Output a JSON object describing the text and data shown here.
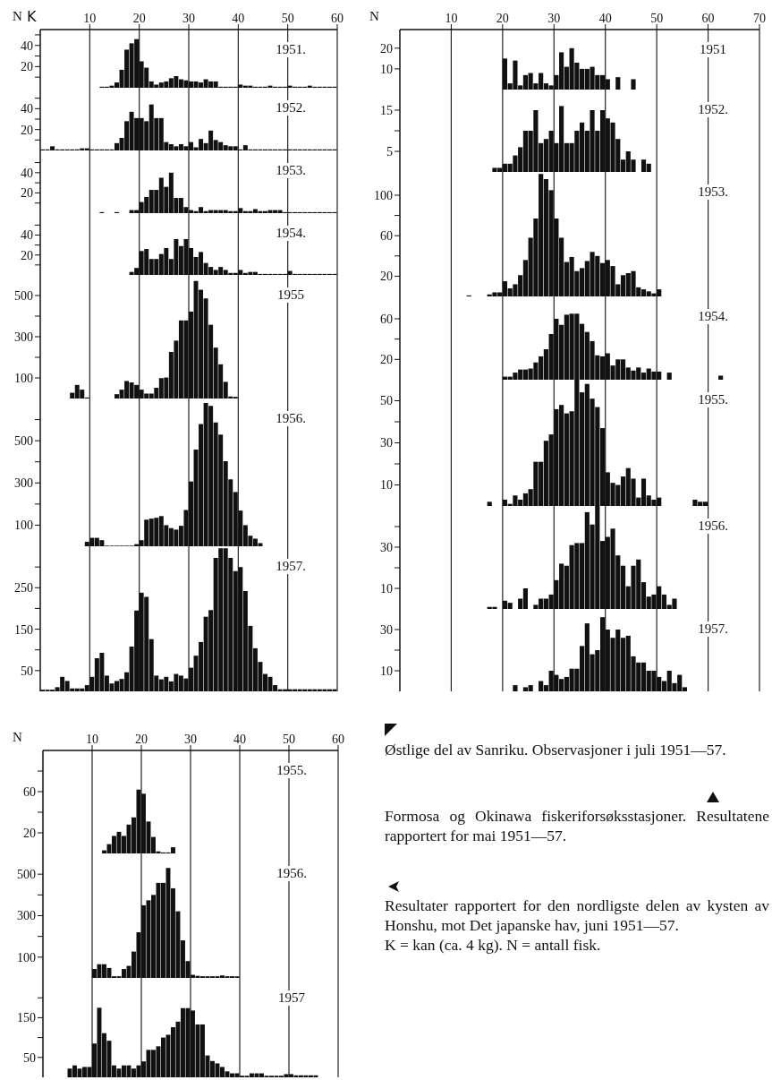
{
  "chart_data": [
    {
      "type": "histogram",
      "title": "1951.",
      "xlabel": "K",
      "ylabel": "N",
      "color": "#111111",
      "grid": "x",
      "xlim": [
        0,
        60
      ],
      "xticks": [
        10,
        20,
        30,
        40,
        50,
        60
      ],
      "ylim": [
        0,
        55
      ],
      "yticks": [
        {
          "value": 10,
          "label": null
        },
        20,
        {
          "value": 30,
          "label": null
        },
        40,
        {
          "value": 50,
          "label": null
        }
      ],
      "bins": [
        12,
        13,
        14,
        15,
        16,
        17,
        18,
        19,
        20,
        21,
        22,
        23,
        24,
        25,
        26,
        27,
        28,
        29,
        30,
        31,
        32,
        33,
        34,
        35,
        36,
        37,
        38,
        39,
        40,
        41,
        42,
        43,
        44,
        45,
        46,
        47,
        48,
        49,
        50,
        51,
        52,
        53,
        54,
        55,
        56,
        57,
        58,
        59,
        60
      ],
      "values": [
        1,
        1,
        2,
        5,
        17,
        36,
        42,
        46,
        25,
        19,
        6,
        3,
        5,
        6,
        9,
        11,
        8,
        7,
        6,
        6,
        5,
        8,
        6,
        6,
        1,
        1,
        1,
        1,
        3,
        2,
        2,
        1,
        1,
        1,
        2,
        1,
        1,
        1,
        2,
        1,
        1,
        1,
        2,
        1,
        1,
        1,
        1,
        1
      ]
    },
    {
      "type": "histogram",
      "title": "1952.",
      "tick_labels": "y",
      "color": "#111111",
      "grid": "x",
      "xlim": [
        0,
        60
      ],
      "xticks": [
        10,
        20,
        30,
        40,
        50,
        60
      ],
      "ylim": [
        0,
        60
      ],
      "yticks": [
        {
          "value": 10,
          "label": null
        },
        20,
        {
          "value": 30,
          "label": null
        },
        40,
        {
          "value": 50,
          "label": null
        }
      ],
      "bins": [
        0,
        1,
        2,
        3,
        4,
        5,
        6,
        7,
        8,
        9,
        10,
        11,
        12,
        13,
        14,
        15,
        16,
        17,
        18,
        19,
        20,
        21,
        22,
        23,
        24,
        25,
        26,
        27,
        28,
        29,
        30,
        31,
        32,
        33,
        34,
        35,
        36,
        37,
        38,
        39,
        40,
        41,
        42,
        43,
        44,
        45,
        46,
        47,
        48,
        49,
        50,
        51,
        52,
        53,
        54,
        55,
        56,
        57,
        58,
        59,
        60
      ],
      "values": [
        1,
        1,
        4,
        1,
        1,
        1,
        1,
        1,
        2,
        2,
        1,
        1,
        1,
        1,
        1,
        7,
        12,
        28,
        37,
        31,
        31,
        28,
        44,
        31,
        31,
        8,
        6,
        4,
        6,
        4,
        8,
        3,
        11,
        7,
        19,
        10,
        8,
        5,
        4,
        4,
        1,
        5,
        1,
        1,
        1,
        1,
        1,
        1,
        1,
        1,
        1,
        1,
        1,
        1,
        1,
        1,
        1,
        1,
        1,
        1
      ]
    },
    {
      "type": "histogram",
      "title": "1953.",
      "tick_labels": "y",
      "color": "#111111",
      "grid": "x",
      "xlim": [
        0,
        60
      ],
      "xticks": [
        10,
        20,
        30,
        40,
        50,
        60
      ],
      "ylim": [
        0,
        62
      ],
      "yticks": [
        {
          "value": 10,
          "label": null
        },
        20,
        {
          "value": 30,
          "label": null
        },
        40,
        {
          "value": 50,
          "label": null
        }
      ],
      "bins": [
        12,
        13,
        14,
        15,
        16,
        17,
        18,
        19,
        20,
        21,
        22,
        23,
        24,
        25,
        26,
        27,
        28,
        29,
        30,
        31,
        32,
        33,
        34,
        35,
        36,
        37,
        38,
        39,
        40,
        41,
        42,
        43,
        44,
        45,
        46,
        47,
        48,
        49,
        50,
        51,
        52,
        53,
        54,
        55,
        56,
        57,
        58,
        59,
        60
      ],
      "values": [
        1,
        0,
        0,
        1,
        0,
        0,
        3,
        3,
        11,
        16,
        23,
        23,
        35,
        26,
        40,
        15,
        15,
        6,
        3,
        2,
        6,
        2,
        3,
        3,
        3,
        3,
        2,
        2,
        5,
        2,
        2,
        4,
        2,
        2,
        3,
        3,
        3,
        1,
        1,
        1,
        1,
        1,
        1,
        1,
        1,
        1,
        1,
        1
      ]
    },
    {
      "type": "histogram",
      "title": "1954.",
      "tick_labels": "y",
      "color": "#111111",
      "grid": "x",
      "xlim": [
        0,
        60
      ],
      "xticks": [
        10,
        20,
        30,
        40,
        50,
        60
      ],
      "ylim": [
        0,
        62
      ],
      "yticks": [
        {
          "value": 10,
          "label": null
        },
        20,
        {
          "value": 30,
          "label": null
        },
        40,
        {
          "value": 50,
          "label": null
        }
      ],
      "bins": [
        18,
        19,
        20,
        21,
        22,
        23,
        24,
        25,
        26,
        27,
        28,
        29,
        30,
        31,
        32,
        33,
        34,
        35,
        36,
        37,
        38,
        39,
        40,
        41,
        42,
        43,
        44,
        45,
        46,
        47,
        48,
        49,
        50,
        51,
        52,
        53,
        54,
        55,
        56,
        57,
        58,
        59,
        60
      ],
      "values": [
        3,
        7,
        24,
        26,
        16,
        16,
        21,
        27,
        16,
        36,
        29,
        36,
        27,
        18,
        23,
        12,
        8,
        5,
        8,
        5,
        2,
        2,
        5,
        2,
        3,
        3,
        1,
        1,
        1,
        1,
        1,
        1,
        4,
        1,
        1,
        1,
        1,
        1,
        1,
        1,
        1,
        1
      ]
    },
    {
      "type": "histogram",
      "title": "1955",
      "tick_labels": "y",
      "color": "#111111",
      "grid": "x",
      "xlim": [
        0,
        60
      ],
      "xticks": [
        10,
        20,
        30,
        40,
        50,
        60
      ],
      "ylim": [
        0,
        600
      ],
      "yticks": [
        100,
        {
          "value": 200,
          "label": null
        },
        300,
        {
          "value": 400,
          "label": null
        },
        500
      ],
      "bins": [
        6,
        7,
        8,
        9,
        10,
        11,
        12,
        13,
        14,
        15,
        16,
        17,
        18,
        19,
        20,
        21,
        22,
        23,
        24,
        25,
        26,
        27,
        28,
        29,
        30,
        31,
        32,
        33,
        34,
        35,
        36,
        37,
        38,
        39,
        40,
        41
      ],
      "values": [
        28,
        66,
        43,
        5,
        null,
        null,
        null,
        null,
        null,
        21,
        43,
        85,
        78,
        66,
        43,
        24,
        24,
        52,
        99,
        102,
        226,
        281,
        379,
        379,
        422,
        571,
        528,
        486,
        358,
        247,
        166,
        81,
        10,
        8,
        null
      ]
    },
    {
      "type": "histogram",
      "title": "1956.",
      "tick_labels": "y",
      "color": "#111111",
      "grid": "x",
      "xlim": [
        0,
        60
      ],
      "xticks": [
        10,
        20,
        30,
        40,
        50,
        60
      ],
      "ylim": [
        0,
        700
      ],
      "yticks": [
        100,
        {
          "value": 200,
          "label": null
        },
        300,
        {
          "value": 400,
          "label": null
        },
        500,
        {
          "value": 600,
          "label": null
        }
      ],
      "bins": [
        9,
        10,
        11,
        12,
        13,
        14,
        15,
        16,
        17,
        18,
        19,
        20,
        21,
        22,
        23,
        24,
        25,
        26,
        27,
        28,
        29,
        30,
        31,
        32,
        33,
        34,
        35,
        36,
        37,
        38,
        39,
        40,
        41,
        42,
        43,
        44,
        45
      ],
      "values": [
        21,
        40,
        40,
        29,
        3,
        3,
        3,
        3,
        3,
        3,
        10,
        29,
        126,
        131,
        135,
        143,
        100,
        86,
        79,
        97,
        172,
        307,
        458,
        579,
        679,
        665,
        586,
        529,
        403,
        317,
        257,
        169,
        100,
        50,
        36,
        15
      ]
    },
    {
      "type": "histogram",
      "title": "1957.",
      "tick_labels": "y",
      "color": "#111111",
      "grid": "x",
      "xlim": [
        0,
        60
      ],
      "xticks": [
        10,
        20,
        30,
        40,
        50,
        60
      ],
      "ylim": [
        0,
        350
      ],
      "yticks": [
        50,
        {
          "value": 100,
          "label": null
        },
        150,
        {
          "value": 200,
          "label": null
        },
        250,
        {
          "value": 300,
          "label": null
        }
      ],
      "bins": [
        0,
        1,
        2,
        3,
        4,
        5,
        6,
        7,
        8,
        9,
        10,
        11,
        12,
        13,
        14,
        15,
        16,
        17,
        18,
        19,
        20,
        21,
        22,
        23,
        24,
        25,
        26,
        27,
        28,
        29,
        30,
        31,
        32,
        33,
        34,
        35,
        36,
        37,
        38,
        39,
        40,
        41,
        42,
        43,
        44,
        45,
        46,
        47,
        48,
        49,
        50,
        51,
        52,
        53,
        54,
        55,
        56,
        57,
        58,
        59,
        60
      ],
      "values": [
        4,
        4,
        4,
        10,
        35,
        25,
        7,
        7,
        7,
        15,
        35,
        80,
        93,
        38,
        19,
        25,
        30,
        46,
        108,
        195,
        238,
        228,
        126,
        38,
        29,
        35,
        24,
        42,
        38,
        31,
        57,
        86,
        119,
        180,
        196,
        322,
        345,
        345,
        322,
        290,
        300,
        242,
        158,
        104,
        71,
        42,
        35,
        15,
        5,
        5,
        5,
        5,
        5,
        5,
        5,
        5,
        5,
        5,
        5,
        5
      ]
    },
    {
      "type": "histogram",
      "title": "1951",
      "ylabel": "N",
      "color": "#111111",
      "grid": "x",
      "xlim": [
        0,
        70
      ],
      "xticks": [
        10,
        20,
        30,
        40,
        50,
        60,
        70
      ],
      "ylim": [
        0,
        29
      ],
      "yticks": [
        10,
        20
      ],
      "bins": [
        20,
        21,
        22,
        23,
        24,
        25,
        26,
        27,
        28,
        29,
        30,
        31,
        32,
        33,
        34,
        35,
        36,
        37,
        38,
        39,
        40,
        41,
        42,
        43,
        44,
        45,
        46
      ],
      "values": [
        15,
        3,
        14,
        2,
        7,
        8,
        3,
        8,
        3,
        2,
        7,
        18,
        11,
        20,
        13,
        10,
        10,
        11,
        7,
        7,
        5,
        0,
        6,
        0,
        0,
        5
      ]
    },
    {
      "type": "histogram",
      "title": "1952.",
      "tick_labels": "y",
      "color": "#111111",
      "grid": "x",
      "xlim": [
        0,
        70
      ],
      "xticks": [
        10,
        20,
        30,
        40,
        50,
        60,
        70
      ],
      "ylim": [
        0,
        20
      ],
      "yticks": [
        5,
        {
          "value": 10,
          "label": null
        },
        15
      ],
      "bins": [
        18,
        19,
        20,
        21,
        22,
        23,
        24,
        25,
        26,
        27,
        28,
        29,
        30,
        31,
        32,
        33,
        34,
        35,
        36,
        37,
        38,
        39,
        40,
        41,
        42,
        43,
        44,
        45,
        46,
        47,
        48,
        49
      ],
      "values": [
        1,
        1,
        2,
        2,
        4,
        6,
        10,
        10,
        15,
        7,
        8,
        10,
        7,
        16,
        7,
        7,
        10,
        12,
        10,
        15,
        10,
        15,
        13,
        12,
        8,
        3,
        5,
        3,
        0,
        3,
        2
      ]
    },
    {
      "type": "histogram",
      "title": "1953.",
      "tick_labels": "y",
      "color": "#111111",
      "grid": "x",
      "xlim": [
        0,
        70
      ],
      "xticks": [
        10,
        20,
        30,
        40,
        50,
        60,
        70
      ],
      "ylim": [
        0,
        123
      ],
      "yticks": [
        20,
        {
          "value": 40,
          "label": null
        },
        60,
        {
          "value": 80,
          "label": null
        },
        100
      ],
      "bins": [
        13,
        14,
        15,
        16,
        17,
        18,
        19,
        20,
        21,
        22,
        23,
        24,
        25,
        26,
        27,
        28,
        29,
        30,
        31,
        32,
        33,
        34,
        35,
        36,
        37,
        38,
        39,
        40,
        41,
        42,
        43,
        44,
        45,
        46,
        47,
        48,
        49,
        50,
        51
      ],
      "values": [
        1,
        0,
        0,
        0,
        2,
        4,
        4,
        15,
        8,
        12,
        21,
        36,
        58,
        77,
        121,
        116,
        105,
        77,
        58,
        34,
        39,
        25,
        28,
        35,
        44,
        40,
        33,
        36,
        30,
        12,
        21,
        23,
        25,
        9,
        7,
        5,
        3,
        7
      ]
    },
    {
      "type": "histogram",
      "title": "1954.",
      "tick_labels": "y",
      "color": "#111111",
      "grid": "x",
      "xlim": [
        0,
        70
      ],
      "xticks": [
        10,
        20,
        30,
        40,
        50,
        60,
        70
      ],
      "ylim": [
        0,
        82
      ],
      "yticks": [
        20,
        {
          "value": 40,
          "label": null
        },
        60
      ],
      "bins": [
        20,
        21,
        22,
        23,
        24,
        25,
        26,
        27,
        28,
        29,
        30,
        31,
        32,
        33,
        34,
        35,
        36,
        37,
        38,
        39,
        40,
        41,
        42,
        43,
        44,
        45,
        46,
        47,
        48,
        49,
        50,
        51,
        52,
        53,
        54,
        55,
        56,
        57,
        58,
        59,
        60,
        61,
        62,
        63
      ],
      "values": [
        3,
        3,
        7,
        10,
        10,
        11,
        17,
        23,
        30,
        45,
        60,
        54,
        64,
        65,
        65,
        55,
        47,
        38,
        24,
        23,
        26,
        14,
        20,
        20,
        12,
        9,
        12,
        7,
        11,
        8,
        8,
        0,
        7,
        0,
        0,
        0,
        0,
        0,
        0,
        0,
        0,
        0,
        4
      ]
    },
    {
      "type": "histogram",
      "title": "1955.",
      "tick_labels": "y",
      "color": "#111111",
      "grid": "x",
      "xlim": [
        0,
        70
      ],
      "xticks": [
        10,
        20,
        30,
        40,
        50,
        60,
        70
      ],
      "ylim": [
        0,
        60
      ],
      "yticks": [
        10,
        {
          "value": 20,
          "label": null
        },
        30,
        {
          "value": 40,
          "label": null
        },
        50
      ],
      "bins": [
        17,
        18,
        19,
        20,
        21,
        22,
        23,
        24,
        25,
        26,
        27,
        28,
        29,
        30,
        31,
        32,
        33,
        34,
        35,
        36,
        37,
        38,
        39,
        40,
        41,
        42,
        43,
        44,
        45,
        46,
        47,
        48,
        49,
        50,
        51,
        52,
        53,
        54,
        55,
        56,
        57,
        58,
        59,
        60
      ],
      "values": [
        2,
        0,
        0,
        3,
        1,
        5,
        3,
        6,
        8,
        21,
        21,
        31,
        34,
        46,
        48,
        44,
        45,
        60,
        54,
        58,
        51,
        47,
        37,
        16,
        11,
        10,
        14,
        18,
        13,
        4,
        13,
        5,
        3,
        4,
        0,
        0,
        0,
        0,
        0,
        0,
        3,
        2,
        2
      ]
    },
    {
      "type": "histogram",
      "title": "1956.",
      "tick_labels": "y",
      "color": "#111111",
      "grid": "x",
      "xlim": [
        0,
        70
      ],
      "xticks": [
        10,
        20,
        30,
        40,
        50,
        60,
        70
      ],
      "ylim": [
        0,
        50
      ],
      "yticks": [
        10,
        {
          "value": 20,
          "label": null
        },
        30,
        {
          "value": 40,
          "label": null
        }
      ],
      "bins": [
        17,
        18,
        19,
        20,
        21,
        22,
        23,
        24,
        25,
        26,
        27,
        28,
        29,
        30,
        31,
        32,
        33,
        34,
        35,
        36,
        37,
        38,
        39,
        40,
        41,
        42,
        43,
        44,
        45,
        46,
        47,
        48,
        49,
        50,
        51,
        52,
        53,
        54
      ],
      "values": [
        1,
        1,
        0,
        4,
        3,
        0,
        5,
        10,
        0,
        2,
        5,
        5,
        7,
        14,
        22,
        21,
        31,
        32,
        32,
        47,
        41,
        50,
        33,
        35,
        39,
        26,
        21,
        11,
        21,
        24,
        13,
        6,
        7,
        11,
        7,
        2,
        5
      ]
    },
    {
      "type": "histogram",
      "title": "1957.",
      "tick_labels": "y",
      "color": "#111111",
      "grid": "x",
      "xlim": [
        0,
        70
      ],
      "xticks": [
        10,
        20,
        30,
        40,
        50,
        60,
        70
      ],
      "ylim": [
        0,
        40
      ],
      "yticks": [
        10,
        {
          "value": 20,
          "label": null
        },
        30
      ],
      "bins": [
        22,
        23,
        24,
        25,
        26,
        27,
        28,
        29,
        30,
        31,
        32,
        33,
        34,
        35,
        36,
        37,
        38,
        39,
        40,
        41,
        42,
        43,
        44,
        45,
        46,
        47,
        48,
        49,
        50,
        51,
        52,
        53,
        54,
        55,
        56
      ],
      "values": [
        3,
        0,
        2,
        3,
        0,
        5,
        3,
        10,
        8,
        6,
        7,
        11,
        11,
        22,
        33,
        18,
        20,
        36,
        30,
        26,
        30,
        26,
        27,
        17,
        14,
        14,
        10,
        10,
        7,
        5,
        10,
        4,
        8,
        2
      ]
    },
    {
      "type": "histogram",
      "title": "1955.",
      "ylabel": "N",
      "color": "#111111",
      "grid": "x",
      "xlim": [
        0,
        60
      ],
      "xticks": [
        10,
        20,
        30,
        40,
        50,
        60
      ],
      "ylim": [
        0,
        100
      ],
      "yticks": [
        20,
        {
          "value": 40,
          "label": null
        },
        60,
        {
          "value": 80,
          "label": null
        }
      ],
      "bins": [
        12,
        13,
        14,
        15,
        16,
        17,
        18,
        19,
        20,
        21,
        22,
        23,
        24,
        25,
        26,
        27
      ],
      "values": [
        3,
        9,
        17,
        21,
        17,
        28,
        35,
        62,
        58,
        31,
        16,
        2,
        1,
        1,
        6
      ]
    },
    {
      "type": "histogram",
      "title": "1956.",
      "tick_labels": "y",
      "color": "#111111",
      "grid": "x",
      "xlim": [
        0,
        60
      ],
      "xticks": [
        10,
        20,
        30,
        40,
        50,
        60
      ],
      "ylim": [
        0,
        600
      ],
      "yticks": [
        100,
        {
          "value": 200,
          "label": null
        },
        300,
        {
          "value": 400,
          "label": null
        },
        500
      ],
      "bins": [
        10,
        11,
        12,
        13,
        14,
        15,
        16,
        17,
        18,
        19,
        20,
        21,
        22,
        23,
        24,
        25,
        26,
        27,
        28,
        29,
        30,
        31,
        32,
        33,
        34,
        35,
        36,
        37,
        38,
        39,
        40
      ],
      "values": [
        43,
        66,
        66,
        48,
        8,
        8,
        43,
        58,
        127,
        220,
        350,
        374,
        400,
        458,
        458,
        530,
        432,
        321,
        181,
        81,
        15,
        10,
        8,
        8,
        8,
        8,
        12,
        8,
        8,
        8
      ]
    },
    {
      "type": "histogram",
      "title": "1957",
      "tick_labels": "y",
      "color": "#111111",
      "grid": "x",
      "xlim": [
        0,
        60
      ],
      "xticks": [
        10,
        20,
        30,
        40,
        50,
        60
      ],
      "ylim": [
        0,
        250
      ],
      "yticks": [
        50,
        {
          "value": 100,
          "label": null
        },
        150,
        {
          "value": 200,
          "label": null
        }
      ],
      "bins": [
        5,
        6,
        7,
        8,
        9,
        10,
        11,
        12,
        13,
        14,
        15,
        16,
        17,
        18,
        19,
        20,
        21,
        22,
        23,
        24,
        25,
        26,
        27,
        28,
        29,
        30,
        31,
        32,
        33,
        34,
        35,
        36,
        37,
        38,
        39,
        40,
        41,
        42,
        43,
        44,
        45,
        46,
        47,
        48,
        49,
        50,
        51,
        52,
        53,
        54,
        55,
        56
      ],
      "values": [
        22,
        30,
        22,
        26,
        26,
        85,
        175,
        111,
        92,
        30,
        22,
        30,
        30,
        22,
        30,
        40,
        69,
        69,
        78,
        100,
        107,
        126,
        140,
        174,
        174,
        168,
        133,
        133,
        55,
        41,
        35,
        26,
        15,
        10,
        10,
        4,
        4,
        10,
        10,
        10,
        4,
        4,
        4,
        4,
        8,
        8,
        5,
        5,
        5,
        5,
        5
      ],
      "annotations": [
        "Østlige del av Sanriku. Observasjoner i juli 1951—57.",
        "Formosa og Okinawa fiskeriforsøksstasjoner. Resultatene rapportert for mai 1951—57.",
        "Resultater rapportert for den nordligste delen av kysten av Honshu, mot Det japanske hav, juni 1951—57.",
        "K = kan (ca. 4 kg). N = antall fisk."
      ]
    }
  ]
}
